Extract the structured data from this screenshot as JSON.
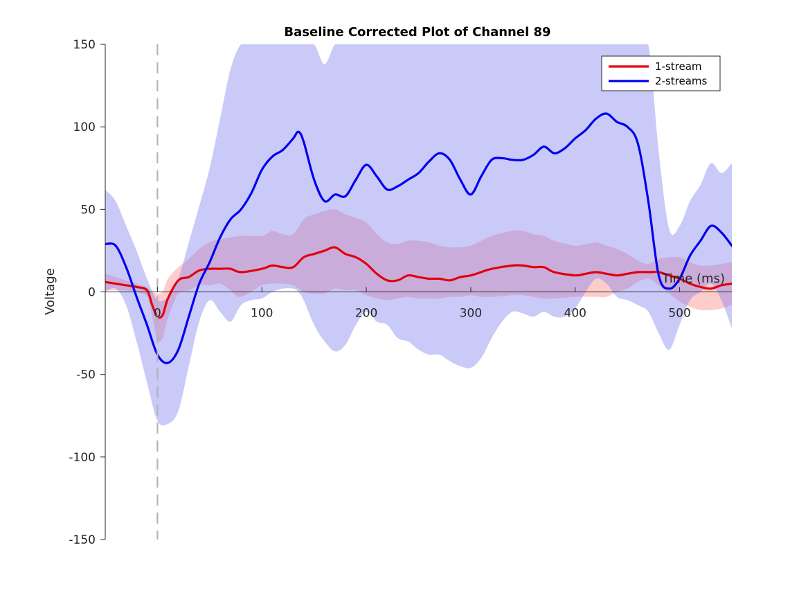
{
  "chart_data": {
    "type": "line",
    "title": "Baseline Corrected Plot of Channel 89",
    "xlabel": "Time (ms)",
    "ylabel": "Voltage",
    "xlim": [
      -50,
      550
    ],
    "ylim": [
      -150,
      150
    ],
    "xticks": [
      {
        "value": 0,
        "label": "0"
      },
      {
        "value": 100,
        "label": "100"
      },
      {
        "value": 200,
        "label": "200"
      },
      {
        "value": 300,
        "label": "300"
      },
      {
        "value": 400,
        "label": "400"
      },
      {
        "value": 500,
        "label": "500"
      }
    ],
    "yticks": [
      {
        "value": 150,
        "label": "150"
      },
      {
        "value": 100,
        "label": "100"
      },
      {
        "value": 50,
        "label": "50"
      },
      {
        "value": 0,
        "label": "0"
      },
      {
        "value": -50,
        "label": "-50"
      },
      {
        "value": -100,
        "label": "-100"
      },
      {
        "value": -150,
        "label": "-150"
      }
    ],
    "stimulus_onset_x": 0,
    "legend_position": "top-right",
    "grid": false,
    "series": [
      {
        "name": "1-stream",
        "color": "#e0000f",
        "band_color": "#ff9999",
        "band_opacity": 0.5,
        "x": [
          -50,
          -40,
          -30,
          -20,
          -10,
          -5,
          0,
          5,
          10,
          20,
          30,
          40,
          50,
          60,
          70,
          80,
          100,
          110,
          120,
          130,
          140,
          150,
          160,
          170,
          180,
          190,
          200,
          210,
          220,
          230,
          240,
          250,
          260,
          270,
          280,
          290,
          300,
          310,
          320,
          340,
          350,
          360,
          370,
          380,
          400,
          410,
          420,
          430,
          440,
          450,
          460,
          470,
          480,
          490,
          500,
          510,
          520,
          530,
          540,
          550
        ],
        "y": [
          6,
          5,
          4,
          3,
          1,
          -8,
          -15,
          -14,
          -4,
          7,
          9,
          13,
          14,
          14,
          14,
          12,
          14,
          16,
          15,
          15,
          21,
          23,
          25,
          27,
          23,
          21,
          17,
          11,
          7,
          7,
          10,
          9,
          8,
          8,
          7,
          9,
          10,
          12,
          14,
          16,
          16,
          15,
          15,
          12,
          10,
          11,
          12,
          11,
          10,
          11,
          12,
          12,
          12,
          10,
          8,
          5,
          3,
          2,
          4,
          5
        ],
        "upper": [
          11,
          9,
          7,
          5,
          3,
          0,
          -1,
          0,
          8,
          15,
          20,
          26,
          30,
          32,
          33,
          34,
          34,
          37,
          35,
          35,
          44,
          47,
          49,
          50,
          47,
          45,
          42,
          35,
          30,
          29,
          31,
          31,
          30,
          28,
          27,
          27,
          28,
          31,
          34,
          37,
          37,
          35,
          34,
          31,
          28,
          29,
          30,
          28,
          26,
          23,
          19,
          17,
          20,
          21,
          21,
          18,
          16,
          16,
          17,
          18
        ],
        "lower": [
          1,
          1,
          1,
          0,
          -3,
          -15,
          -29,
          -28,
          -16,
          -1,
          1,
          4,
          4,
          5,
          1,
          -3,
          4,
          5,
          5,
          4,
          0,
          -1,
          -1,
          2,
          1,
          1,
          -2,
          -4,
          -5,
          -4,
          -3,
          -4,
          -4,
          -4,
          -3,
          -3,
          -2,
          -3,
          -3,
          -2,
          -2,
          -3,
          -4,
          -4,
          -3,
          -3,
          -3,
          -3,
          0,
          2,
          6,
          8,
          4,
          -1,
          -6,
          -9,
          -11,
          -11,
          -10,
          -8
        ]
      },
      {
        "name": "2-streams",
        "color": "#0000ee",
        "band_color": "#8080ee",
        "band_opacity": 0.42,
        "x": [
          -50,
          -40,
          -30,
          -20,
          -10,
          0,
          10,
          20,
          30,
          40,
          50,
          60,
          70,
          80,
          90,
          100,
          110,
          120,
          130,
          135,
          140,
          150,
          160,
          170,
          180,
          190,
          200,
          210,
          220,
          230,
          240,
          250,
          260,
          270,
          280,
          290,
          300,
          310,
          320,
          330,
          340,
          350,
          360,
          370,
          380,
          390,
          400,
          410,
          420,
          430,
          440,
          450,
          460,
          470,
          480,
          490,
          500,
          510,
          520,
          530,
          540,
          550
        ],
        "y": [
          29,
          28,
          15,
          -3,
          -20,
          -38,
          -43,
          -35,
          -15,
          5,
          18,
          33,
          44,
          50,
          60,
          74,
          82,
          86,
          93,
          97,
          91,
          68,
          55,
          59,
          58,
          68,
          77,
          70,
          62,
          64,
          68,
          72,
          79,
          84,
          80,
          68,
          59,
          70,
          80,
          81,
          80,
          80,
          83,
          88,
          84,
          87,
          93,
          98,
          105,
          108,
          103,
          100,
          90,
          55,
          10,
          2,
          8,
          22,
          31,
          40,
          36,
          28
        ],
        "upper": [
          62,
          55,
          40,
          25,
          8,
          -5,
          -3,
          8,
          30,
          52,
          75,
          105,
          135,
          150,
          150,
          150,
          150,
          150,
          150,
          150,
          150,
          150,
          138,
          150,
          150,
          150,
          150,
          150,
          150,
          150,
          150,
          150,
          150,
          150,
          150,
          150,
          150,
          150,
          150,
          150,
          150,
          150,
          150,
          150,
          150,
          150,
          150,
          150,
          150,
          150,
          150,
          150,
          150,
          150,
          85,
          38,
          40,
          55,
          65,
          78,
          72,
          78
        ],
        "lower": [
          0,
          2,
          -8,
          -30,
          -55,
          -78,
          -80,
          -72,
          -45,
          -18,
          -5,
          -12,
          -18,
          -8,
          -5,
          -4,
          0,
          2,
          2,
          0,
          -5,
          -20,
          -30,
          -36,
          -32,
          -20,
          -12,
          -18,
          -20,
          -28,
          -30,
          -35,
          -38,
          -38,
          -42,
          -45,
          -46,
          -40,
          -28,
          -18,
          -12,
          -13,
          -15,
          -12,
          -15,
          -15,
          -10,
          0,
          8,
          5,
          -3,
          -5,
          -8,
          -12,
          -25,
          -35,
          -20,
          -5,
          0,
          5,
          -5,
          -22
        ]
      }
    ]
  }
}
